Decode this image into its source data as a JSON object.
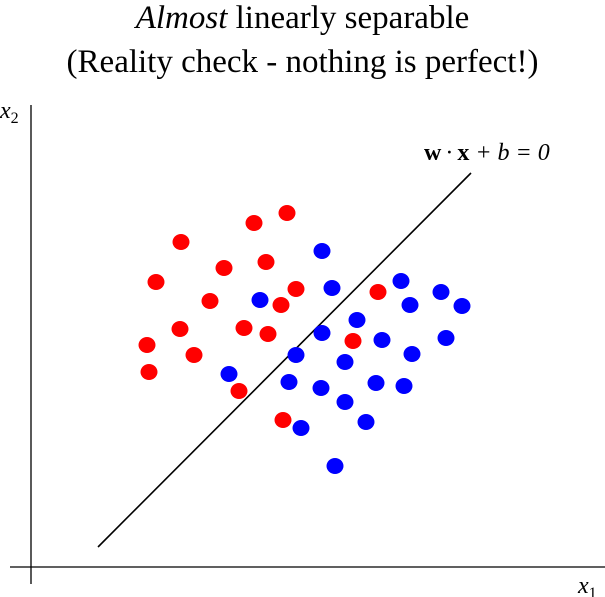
{
  "title": {
    "line1_emph": "Almost",
    "line1_rest": " linearly separable",
    "line2": "(Reality check - nothing is perfect!)"
  },
  "axes": {
    "x_label_var": "x",
    "x_label_sub": "1",
    "y_label_var": "x",
    "y_label_sub": "2"
  },
  "boundary": {
    "w": "w",
    "dot1": "·",
    "x": "x",
    "rest": " + b = 0"
  },
  "colors": {
    "class_a": "#ff0000",
    "class_b": "#0000ff",
    "line": "#000000"
  },
  "chart_data": {
    "type": "scatter",
    "series": [
      {
        "color": "#ff0000",
        "points": [
          [
            254,
            223
          ],
          [
            287,
            213
          ],
          [
            181,
            242
          ],
          [
            224,
            268
          ],
          [
            266,
            262
          ],
          [
            156,
            282
          ],
          [
            296,
            289
          ],
          [
            210,
            301
          ],
          [
            281,
            305
          ],
          [
            378,
            292
          ],
          [
            180,
            329
          ],
          [
            244,
            328
          ],
          [
            268,
            334
          ],
          [
            147,
            345
          ],
          [
            194,
            355
          ],
          [
            149,
            372
          ],
          [
            353,
            341
          ],
          [
            239,
            391
          ],
          [
            283,
            420
          ]
        ]
      },
      {
        "color": "#0000ff",
        "points": [
          [
            322,
            251
          ],
          [
            260,
            300
          ],
          [
            332,
            288
          ],
          [
            401,
            281
          ],
          [
            441,
            292
          ],
          [
            410,
            305
          ],
          [
            462,
            306
          ],
          [
            357,
            320
          ],
          [
            322,
            333
          ],
          [
            382,
            340
          ],
          [
            446,
            338
          ],
          [
            296,
            355
          ],
          [
            345,
            362
          ],
          [
            412,
            354
          ],
          [
            229,
            374
          ],
          [
            289,
            382
          ],
          [
            321,
            388
          ],
          [
            376,
            383
          ],
          [
            404,
            386
          ],
          [
            345,
            402
          ],
          [
            301,
            428
          ],
          [
            366,
            422
          ],
          [
            335,
            466
          ]
        ]
      }
    ],
    "line": {
      "from": [
        98,
        547
      ],
      "to": [
        471,
        173
      ]
    }
  }
}
